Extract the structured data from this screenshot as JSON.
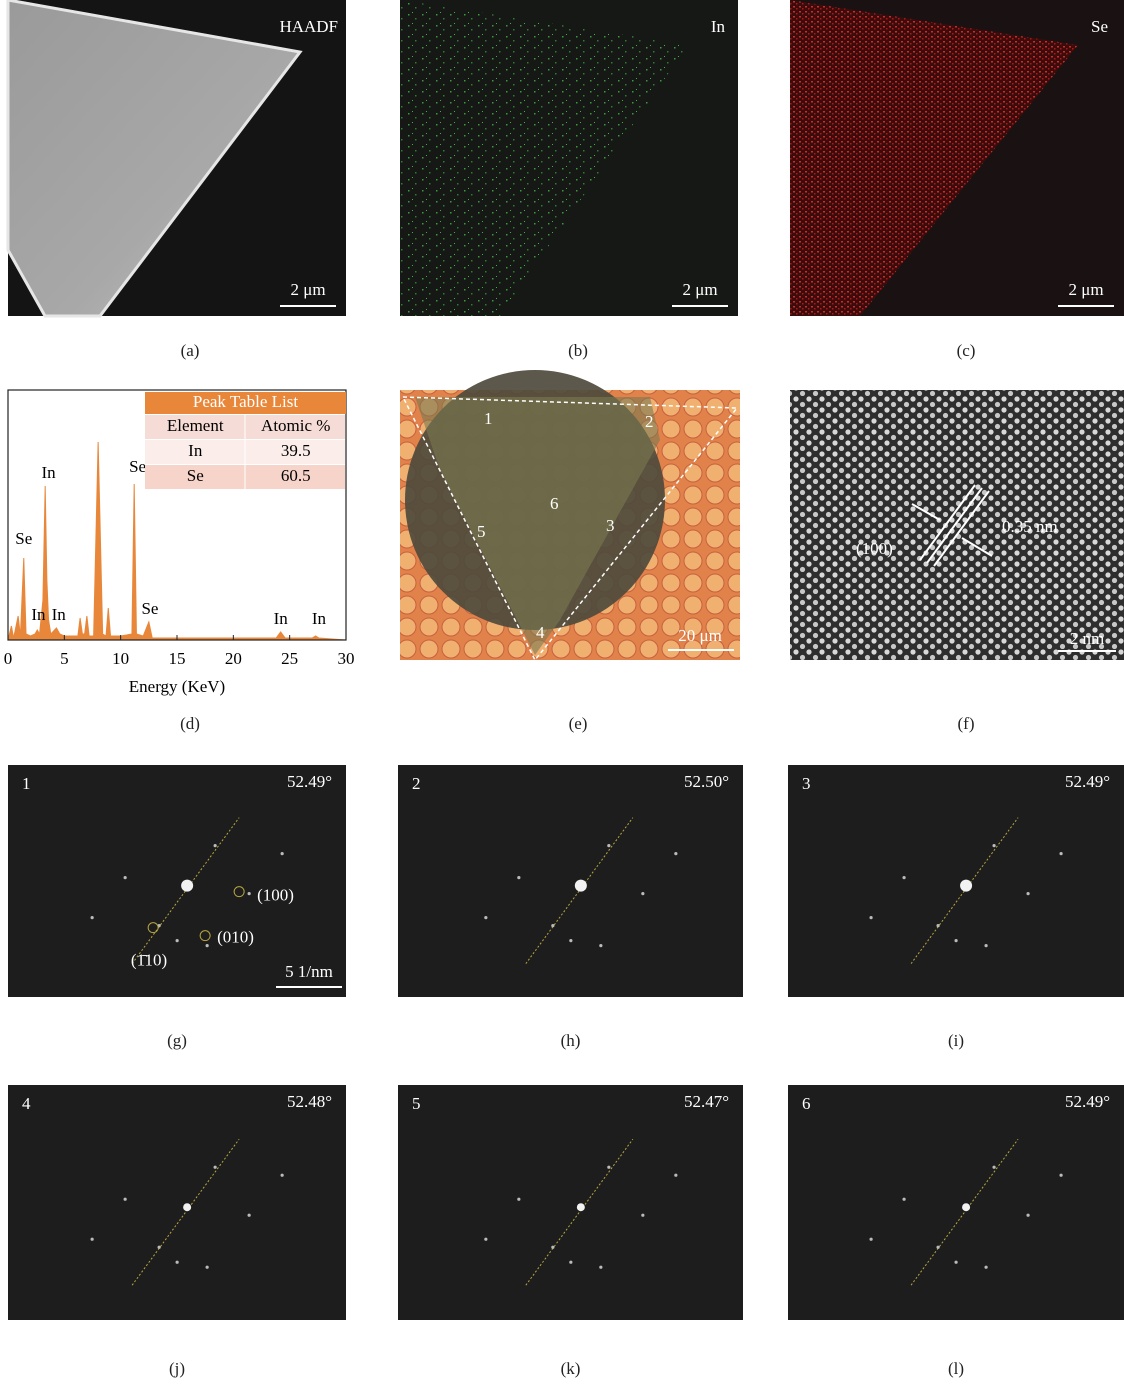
{
  "panels": {
    "a": {
      "label": "HAADF",
      "scale": "2 μm",
      "caption": "(a)"
    },
    "b": {
      "label": "In",
      "scale": "2 μm",
      "caption": "(b)"
    },
    "c": {
      "label": "Se",
      "scale": "2 μm",
      "caption": "(c)"
    },
    "d": {
      "caption": "(d)"
    },
    "e": {
      "points": [
        "1",
        "2",
        "3",
        "4",
        "5",
        "6"
      ],
      "scale": "20 μm",
      "caption": "(e)"
    },
    "f": {
      "spacing": "0.35 nm",
      "plane": "(100)",
      "scale": "2 nm",
      "caption": "(f)"
    },
    "sad": [
      {
        "number": "1",
        "angle": "52.49°",
        "caption": "(g)"
      },
      {
        "number": "2",
        "angle": "52.50°",
        "caption": "(h)"
      },
      {
        "number": "3",
        "angle": "52.49°",
        "caption": "(i)"
      },
      {
        "number": "4",
        "angle": "52.48°",
        "caption": "(j)"
      },
      {
        "number": "5",
        "angle": "52.47°",
        "caption": "(k)"
      },
      {
        "number": "6",
        "angle": "52.49°",
        "caption": "(l)"
      }
    ],
    "g_indices": [
      "(100)",
      "(010)",
      "(1̄10)"
    ],
    "g_scale": "5 1/nm"
  },
  "chart_data": {
    "type": "area",
    "xlabel": "Energy (KeV)",
    "color": "#e8873a",
    "x": [
      0,
      0.3,
      0.5,
      0.9,
      1.1,
      1.4,
      1.6,
      2.0,
      2.4,
      2.6,
      2.8,
      3.1,
      3.3,
      3.45,
      3.6,
      3.8,
      4.3,
      4.6,
      5,
      6.2,
      6.4,
      6.6,
      6.8,
      7.0,
      7.2,
      7.6,
      8.0,
      8.4,
      8.7,
      8.9,
      9.1,
      10,
      11.0,
      11.2,
      11.4,
      12.0,
      12.5,
      12.8,
      14,
      20,
      23.8,
      24.2,
      24.6,
      27,
      27.3,
      27.6,
      30
    ],
    "values": [
      0,
      7,
      1,
      12,
      2,
      41,
      3,
      2,
      3,
      5,
      3,
      20,
      77,
      30,
      10,
      3,
      6,
      3,
      2,
      2,
      11,
      3,
      3,
      12,
      2,
      2,
      99,
      3,
      2,
      16,
      2,
      2,
      3,
      78,
      3,
      2,
      9,
      1,
      1,
      1,
      1,
      4,
      1,
      1,
      2,
      1,
      0
    ],
    "xlim": [
      0,
      30
    ],
    "xticks": [
      0,
      5,
      10,
      15,
      20,
      25,
      30
    ],
    "ylim": [
      0,
      100
    ],
    "annotations": [
      {
        "text": "Se",
        "x": 1.4,
        "y": 50
      },
      {
        "text": "In",
        "x": 3.6,
        "y": 83
      },
      {
        "text": "In",
        "x": 2.7,
        "y": 12
      },
      {
        "text": "In",
        "x": 4.5,
        "y": 12
      },
      {
        "text": "Se",
        "x": 11.5,
        "y": 86
      },
      {
        "text": "Se",
        "x": 12.6,
        "y": 15
      },
      {
        "text": "In",
        "x": 24.2,
        "y": 10
      },
      {
        "text": "In",
        "x": 27.6,
        "y": 10
      }
    ],
    "table": {
      "title": "Peak Table List",
      "header": [
        "Element",
        "Atomic %"
      ],
      "rows": [
        [
          "In",
          39.5
        ],
        [
          "Se",
          60.5
        ]
      ]
    }
  }
}
